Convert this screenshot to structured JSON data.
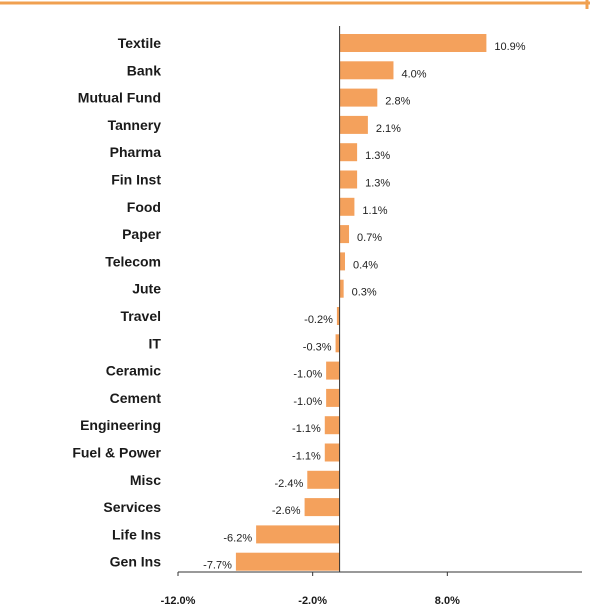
{
  "chart_data": {
    "type": "bar",
    "orientation": "horizontal",
    "categories": [
      "Textile",
      "Bank",
      "Mutual Fund",
      "Tannery",
      "Pharma",
      "Fin Inst",
      "Food",
      "Paper",
      "Telecom",
      "Jute",
      "Travel",
      "IT",
      "Ceramic",
      "Cement",
      "Engineering",
      "Fuel & Power",
      "Misc",
      "Services",
      "Life Ins",
      "Gen Ins"
    ],
    "values": [
      10.9,
      4.0,
      2.8,
      2.1,
      1.3,
      1.3,
      1.1,
      0.7,
      0.4,
      0.3,
      -0.2,
      -0.3,
      -1.0,
      -1.0,
      -1.1,
      -1.1,
      -2.4,
      -2.6,
      -6.2,
      -7.7
    ],
    "value_labels": [
      "10.9%",
      "4.0%",
      "2.8%",
      "2.1%",
      "1.3%",
      "1.3%",
      "1.1%",
      "0.7%",
      "0.4%",
      "0.3%",
      "-0.2%",
      "-0.3%",
      "-1.0%",
      "-1.0%",
      "-1.1%",
      "-1.1%",
      "-2.4%",
      "-2.6%",
      "-6.2%",
      "-7.7%"
    ],
    "xlim": [
      -12,
      18
    ],
    "x_ticks": [
      -12,
      -2,
      8
    ],
    "x_tick_labels": [
      "-12.0%",
      "-2.0%",
      "8.0%"
    ],
    "title": "",
    "xlabel": "",
    "ylabel": "",
    "grid": false,
    "legend": "none"
  },
  "colors": {
    "bar": "#f4a15c",
    "frame": "#f0a050",
    "axis": "#333333"
  }
}
